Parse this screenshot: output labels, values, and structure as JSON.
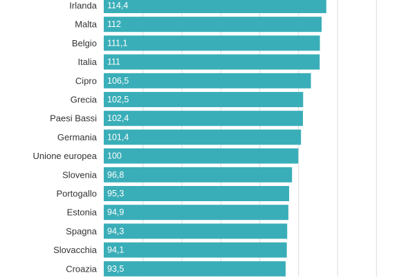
{
  "chart_data": {
    "type": "bar",
    "orientation": "horizontal",
    "categories": [
      "Irlanda",
      "Malta",
      "Belgio",
      "Italia",
      "Cipro",
      "Grecia",
      "Paesi Bassi",
      "Germania",
      "Unione europea",
      "Slovenia",
      "Portogallo",
      "Estonia",
      "Spagna",
      "Slovacchia",
      "Croazia"
    ],
    "values": [
      114.4,
      112,
      111.1,
      111,
      106.5,
      102.5,
      102.4,
      101.4,
      100,
      96.8,
      95.3,
      94.9,
      94.3,
      94.1,
      93.5
    ],
    "value_labels": [
      "114,4",
      "112",
      "111,1",
      "111",
      "106,5",
      "102,5",
      "102,4",
      "101,4",
      "100",
      "96,8",
      "95,3",
      "94,9",
      "94,3",
      "94,1",
      "93,5"
    ],
    "xlim": [
      0,
      160
    ],
    "grid": true,
    "bar_color": "#3aaeb8"
  }
}
